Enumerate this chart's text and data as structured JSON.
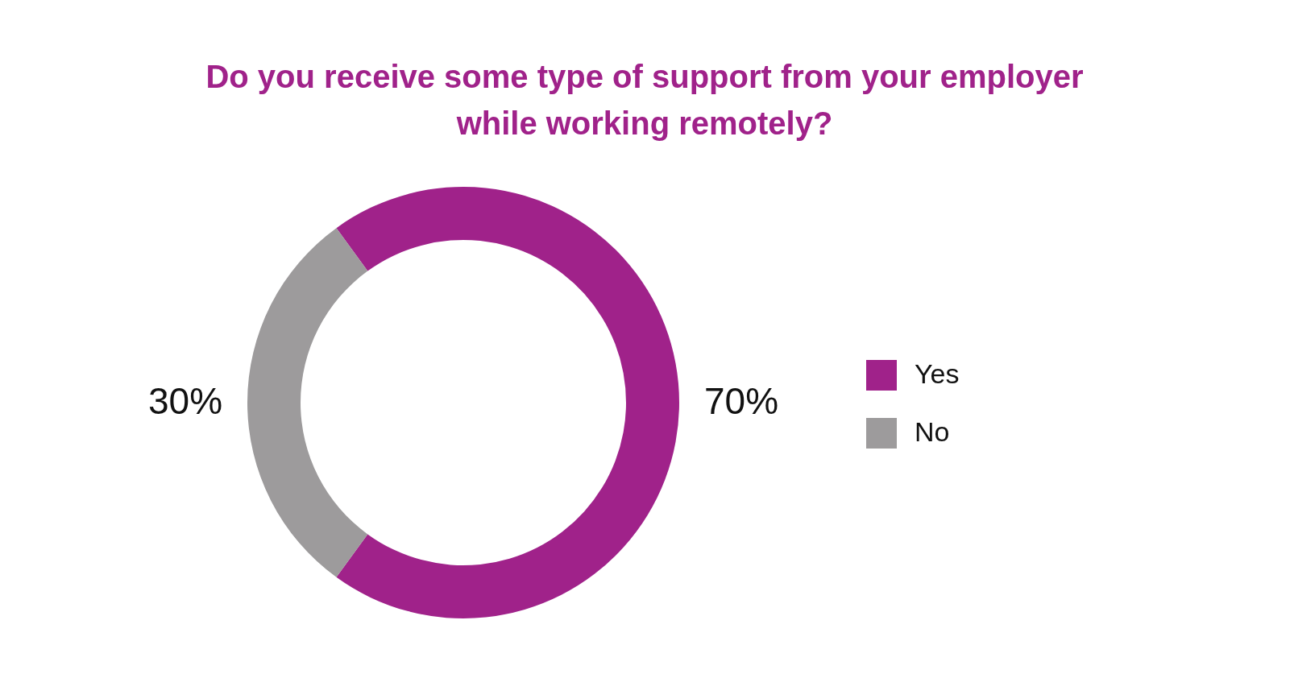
{
  "chart_data": {
    "type": "donut",
    "title": "Do you receive some type of support from your employer while working remotely?",
    "categories": [
      "Yes",
      "No"
    ],
    "values": [
      70,
      30
    ],
    "colors": [
      "#a0228a",
      "#9d9b9c"
    ],
    "value_labels": [
      "70%",
      "30%"
    ],
    "legend": "right"
  }
}
